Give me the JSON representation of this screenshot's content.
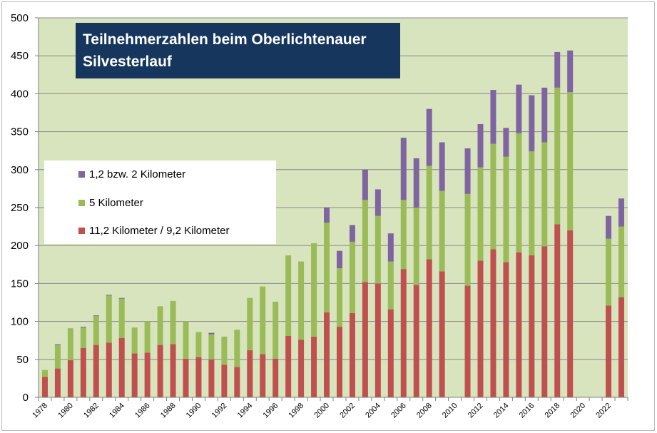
{
  "chart_data": {
    "type": "bar",
    "stacked": true,
    "title": "Teilnehmerzahlen beim Oberlichtenauer Silvesterlauf",
    "ylim": [
      0,
      500
    ],
    "yticks": [
      0,
      50,
      100,
      150,
      200,
      250,
      300,
      350,
      400,
      450,
      500
    ],
    "xtick_labels": [
      "1978",
      "1980",
      "1982",
      "1984",
      "1986",
      "1988",
      "1990",
      "1992",
      "1994",
      "1996",
      "1998",
      "2000",
      "2002",
      "2004",
      "2006",
      "2008",
      "2010",
      "2012",
      "2014",
      "2016",
      "2018",
      "2020",
      "2022"
    ],
    "categories": [
      "1978",
      "1979",
      "1980",
      "1981",
      "1982",
      "1983",
      "1984",
      "1985",
      "1986",
      "1987",
      "1988",
      "1989",
      "1990",
      "1991",
      "1992",
      "1993",
      "1994",
      "1995",
      "1996",
      "1997",
      "1998",
      "1999",
      "2000",
      "2001",
      "2002",
      "2003",
      "2004",
      "2005",
      "2006",
      "2007",
      "2008",
      "2009",
      "2010",
      "2011",
      "2012",
      "2013",
      "2014",
      "2015",
      "2016",
      "2017",
      "2018",
      "2019",
      "2020",
      "2021",
      "2022",
      "2023"
    ],
    "series": [
      {
        "name": "11,2 Kilometer / 9,2 Kilometer",
        "color": "#c0504d",
        "values": [
          27,
          38,
          49,
          65,
          69,
          72,
          78,
          58,
          59,
          69,
          70,
          51,
          53,
          50,
          43,
          40,
          62,
          57,
          51,
          81,
          76,
          80,
          112,
          93,
          111,
          152,
          150,
          116,
          169,
          148,
          182,
          166,
          0,
          147,
          180,
          195,
          178,
          191,
          187,
          199,
          228,
          220,
          0,
          0,
          121,
          132
        ]
      },
      {
        "name": "5 Kilometer",
        "color": "#9bbb59",
        "values": [
          9,
          31,
          42,
          27,
          38,
          62,
          52,
          34,
          41,
          51,
          57,
          49,
          33,
          33,
          37,
          49,
          69,
          89,
          75,
          106,
          103,
          123,
          118,
          77,
          94,
          108,
          89,
          63,
          91,
          102,
          123,
          106,
          0,
          121,
          123,
          139,
          139,
          157,
          137,
          137,
          180,
          182,
          0,
          0,
          88,
          93
        ]
      },
      {
        "name": "1,2 bzw. 2 Kilometer",
        "color": "#8064a2",
        "values": [
          0,
          1,
          0,
          1,
          1,
          1,
          1,
          0,
          0,
          0,
          0,
          0,
          0,
          2,
          0,
          0,
          0,
          0,
          0,
          0,
          0,
          0,
          20,
          23,
          22,
          40,
          35,
          37,
          82,
          65,
          75,
          64,
          0,
          60,
          57,
          71,
          38,
          64,
          74,
          72,
          47,
          55,
          0,
          0,
          30,
          37
        ]
      }
    ],
    "legend": {
      "position": "left-center",
      "entries": [
        "1,2 bzw. 2 Kilometer",
        "5 Kilometer",
        "11,2 Kilometer / 9,2 Kilometer"
      ]
    },
    "plot_background": "#d7e4bd",
    "gridlines": true
  }
}
